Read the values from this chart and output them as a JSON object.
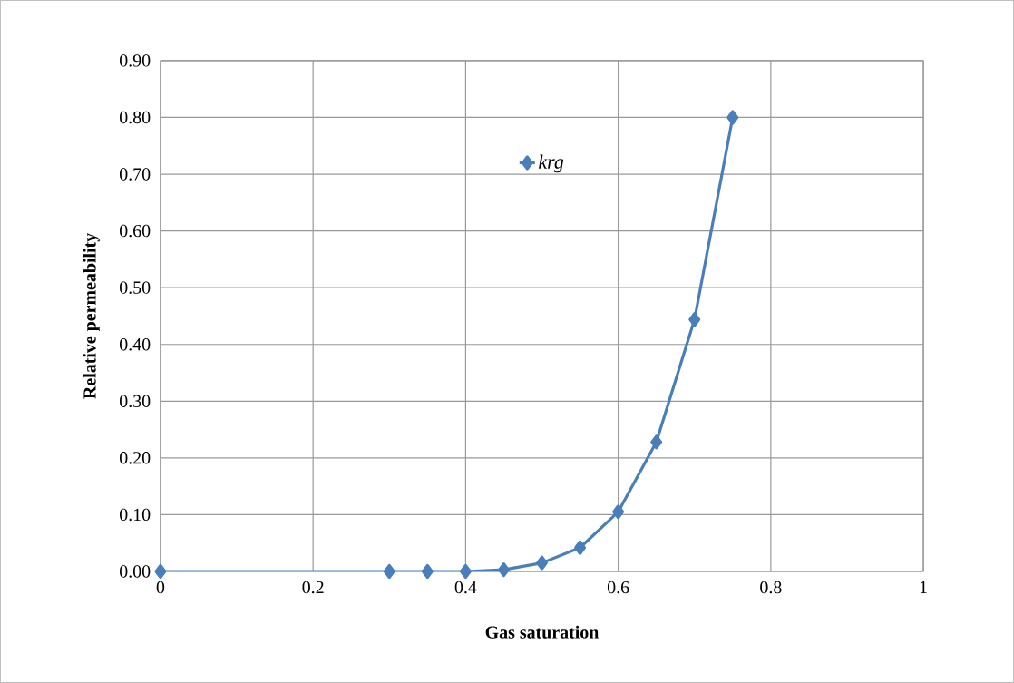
{
  "chart_data": {
    "type": "line",
    "xlabel": "Gas saturation",
    "ylabel": "Relative permeability",
    "x": [
      0,
      0.3,
      0.35,
      0.4,
      0.45,
      0.5,
      0.55,
      0.6,
      0.65,
      0.7,
      0.75
    ],
    "series": [
      {
        "name": "krg",
        "color": "#4a7ebb",
        "values": [
          0,
          0,
          0,
          0,
          0.003,
          0.015,
          0.042,
          0.105,
          0.228,
          0.444,
          0.8
        ]
      }
    ],
    "xlim": [
      0,
      1
    ],
    "xticks": [
      0,
      0.2,
      0.4,
      0.6,
      0.8,
      1
    ],
    "ylim": [
      0,
      0.9
    ],
    "yticks": [
      {
        "value": 0,
        "label": "0.00"
      },
      {
        "value": 0.1,
        "label": "0.10"
      },
      {
        "value": 0.2,
        "label": "0.20"
      },
      {
        "value": 0.3,
        "label": "0.30"
      },
      {
        "value": 0.4,
        "label": "0.40"
      },
      {
        "value": 0.5,
        "label": "0.50"
      },
      {
        "value": 0.6,
        "label": "0.60"
      },
      {
        "value": 0.7,
        "label": "0.70"
      },
      {
        "value": 0.8,
        "label": "0.80"
      },
      {
        "value": 0.9,
        "label": "0.90"
      }
    ],
    "grid": true,
    "legend": "top",
    "marker": "diamond",
    "line_style": "solid"
  }
}
